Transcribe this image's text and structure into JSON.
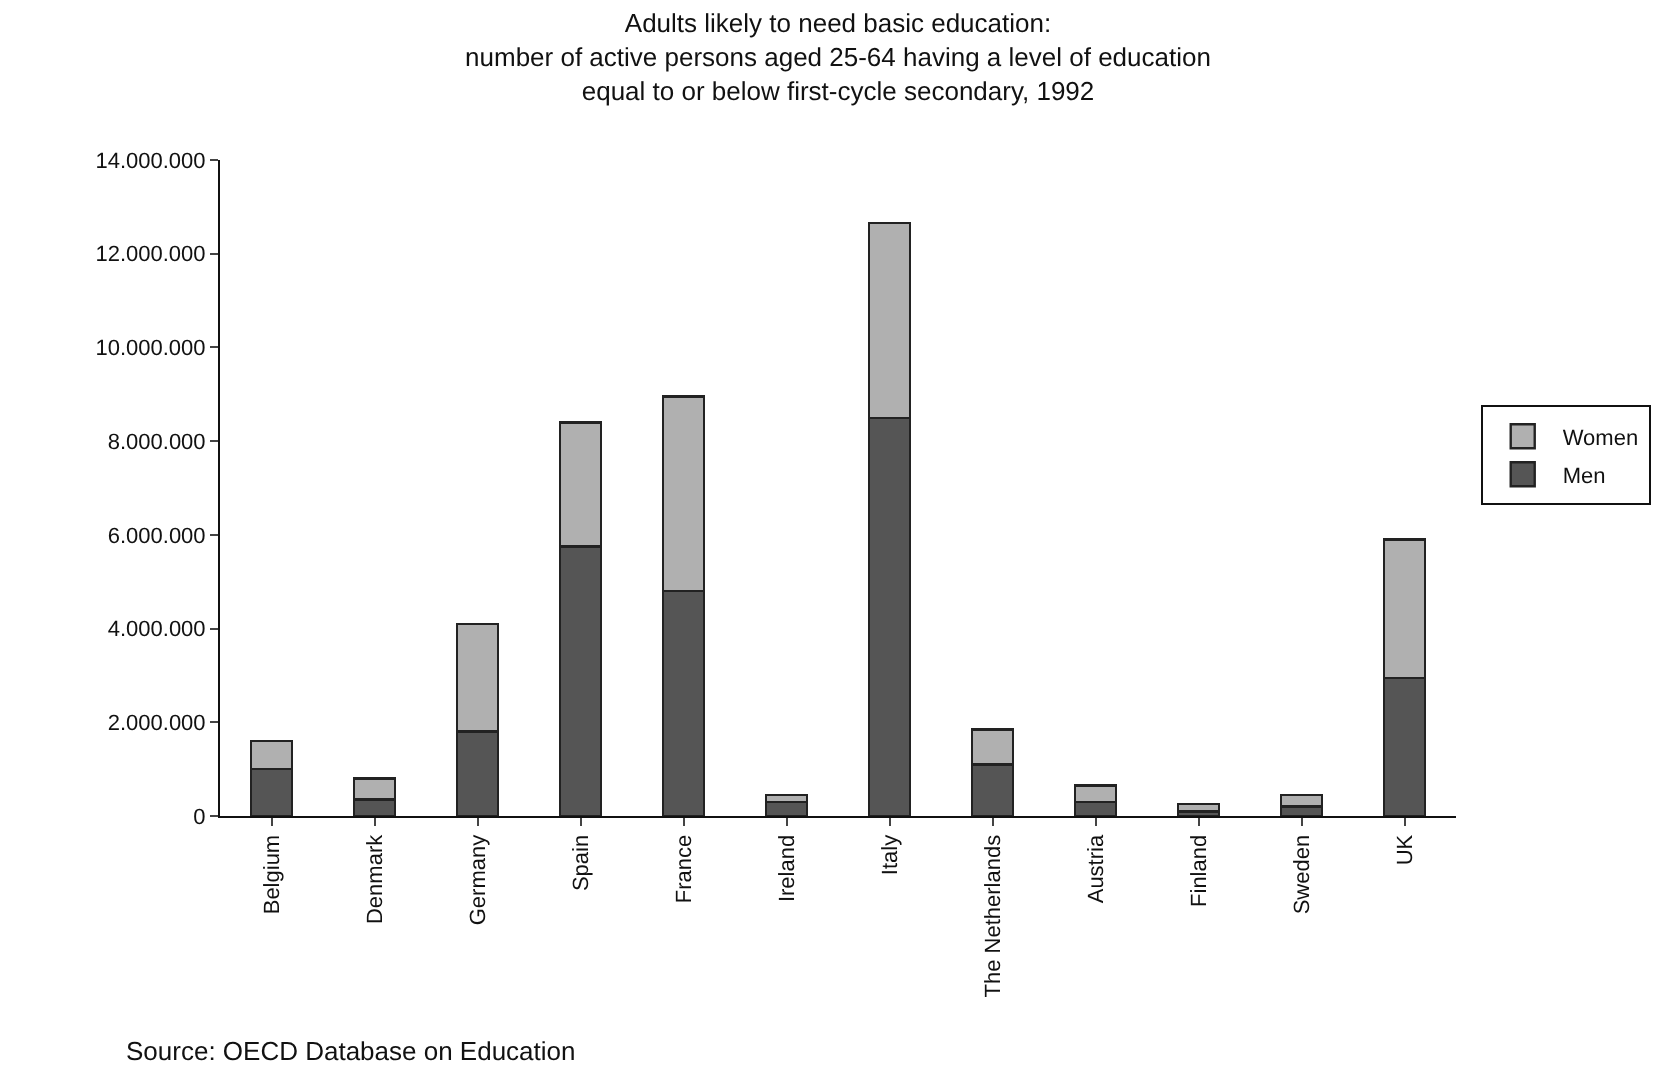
{
  "chart_data": {
    "type": "bar",
    "stacked": true,
    "title": "Adults likely to need basic education:\nnumber of active persons aged 25-64 having a level of education\nequal to or below first-cycle secondary, 1992",
    "categories": [
      "Belgium",
      "Denmark",
      "Germany",
      "Spain",
      "France",
      "Ireland",
      "Italy",
      "The Netherlands",
      "Austria",
      "Finland",
      "Sweden",
      "UK"
    ],
    "series": [
      {
        "name": "Men",
        "color": "#555555",
        "values": [
          1000000,
          350000,
          1800000,
          5750000,
          4800000,
          300000,
          8500000,
          1100000,
          300000,
          100000,
          200000,
          2950000
        ]
      },
      {
        "name": "Women",
        "color": "#b0b0b0",
        "values": [
          600000,
          450000,
          2300000,
          2650000,
          4150000,
          150000,
          4150000,
          750000,
          350000,
          150000,
          250000,
          2950000
        ]
      }
    ],
    "ylim": [
      0,
      14000000
    ],
    "yticks": [
      {
        "value": 0,
        "label": "0"
      },
      {
        "value": 2000000,
        "label": "2.000.000"
      },
      {
        "value": 4000000,
        "label": "4.000.000"
      },
      {
        "value": 6000000,
        "label": "6.000.000"
      },
      {
        "value": 8000000,
        "label": "8.000.000"
      },
      {
        "value": 10000000,
        "label": "10.000.000"
      },
      {
        "value": 12000000,
        "label": "12.000.000"
      },
      {
        "value": 14000000,
        "label": "14.000.000"
      }
    ],
    "grid": false,
    "legend": "right",
    "annotations": [
      "Source: OECD Database on Education"
    ]
  }
}
